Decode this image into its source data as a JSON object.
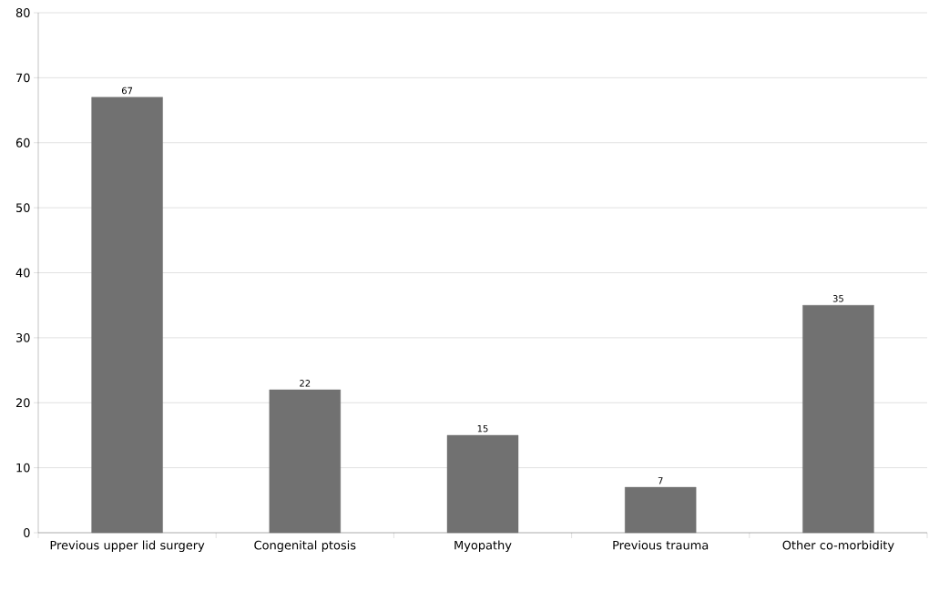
{
  "chart_data": {
    "type": "bar",
    "categories": [
      "Previous upper lid surgery",
      "Congenital ptosis",
      "Myopathy",
      "Previous trauma",
      "Other co-morbidity"
    ],
    "values": [
      67,
      22,
      15,
      7,
      35
    ],
    "color": "#717171",
    "ylim": [
      0,
      80
    ],
    "yticks": [
      0,
      10,
      20,
      30,
      40,
      50,
      60,
      70,
      80
    ],
    "grid": "y",
    "data_labels": true
  }
}
